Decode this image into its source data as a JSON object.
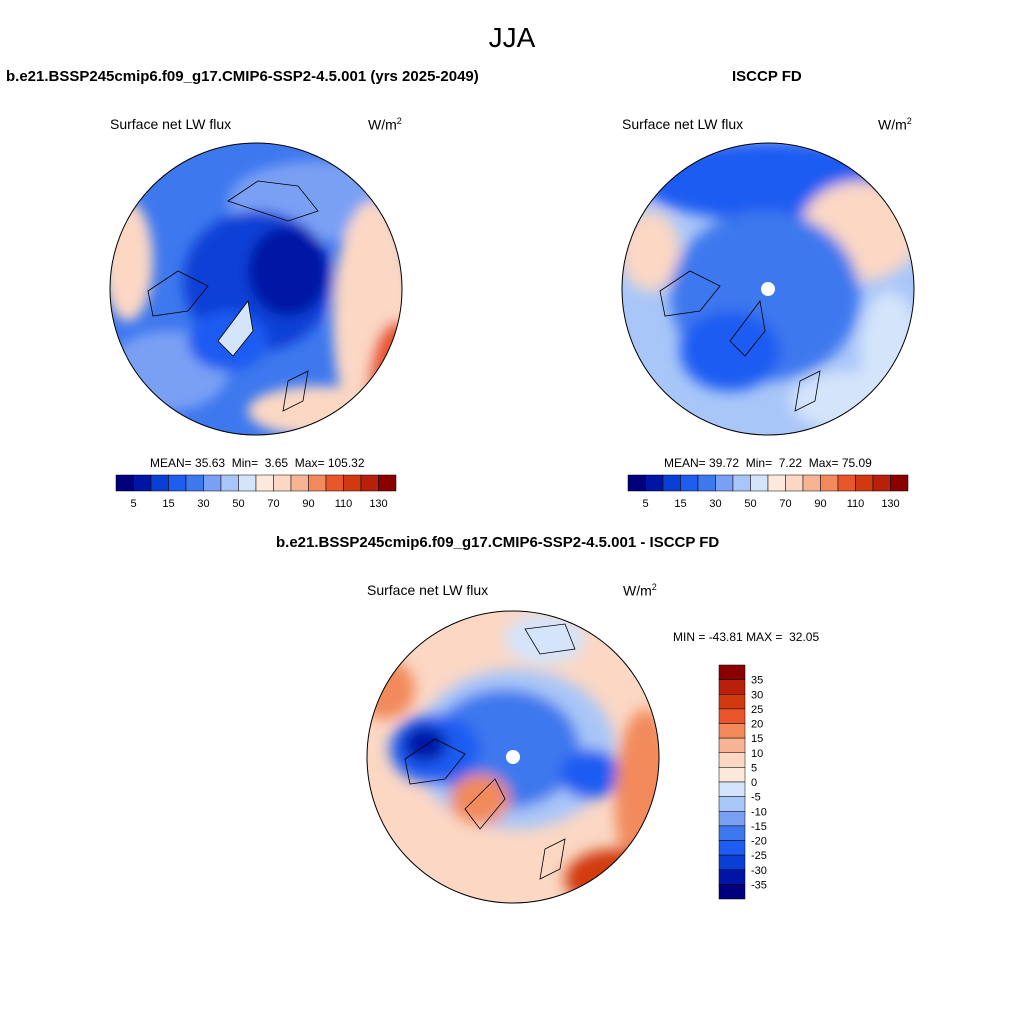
{
  "season": "JJA",
  "units": {
    "text": "W/m",
    "sup": "2"
  },
  "colors": {
    "ocean_blue_dark": "#0a3fd6",
    "land_blue": "#3e78ee",
    "light_blue": "#a9c6f8",
    "pale_orange": "#fbd7c4",
    "orange": "#f28a5c",
    "deep_red": "#b8200a",
    "coast": "#000000"
  },
  "panels": [
    {
      "title": "b.e21.BSSP245cmip6.f09_g17.CMIP6-SSP2-4.5.001 (yrs 2025-2049)",
      "variable": "Surface net LW flux",
      "stats": {
        "mean_label": "MEAN=",
        "mean": "35.63",
        "min_label": "Min=",
        "min": "3.65",
        "max_label": "Max=",
        "max": "105.32"
      }
    },
    {
      "title": "ISCCP FD",
      "variable": "Surface net LW flux",
      "stats": {
        "mean_label": "MEAN=",
        "mean": "39.72",
        "min_label": "Min=",
        "min": "7.22",
        "max_label": "Max=",
        "max": "75.09"
      }
    }
  ],
  "diff_panel": {
    "title": "b.e21.BSSP245cmip6.f09_g17.CMIP6-SSP2-4.5.001 - ISCCP FD",
    "variable": "Surface net LW flux",
    "stats": {
      "min_label": "MIN =",
      "min": "-43.81",
      "max_label": "MAX =",
      "max": "32.05"
    }
  },
  "colorbar_horizontal": {
    "colors": [
      "#00007f",
      "#0014a5",
      "#0a3fd6",
      "#1f5cf2",
      "#3e78ee",
      "#7aa0f4",
      "#a9c6f8",
      "#d4e4fb",
      "#fde8dc",
      "#fbd7c4",
      "#f7b494",
      "#f28a5c",
      "#e9562c",
      "#d13a0f",
      "#b8200a",
      "#8a0000"
    ],
    "labels": [
      "5",
      "15",
      "30",
      "50",
      "70",
      "90",
      "110",
      "130"
    ]
  },
  "colorbar_vertical": {
    "colors": [
      "#8a0000",
      "#b8200a",
      "#d13a0f",
      "#e9562c",
      "#f28a5c",
      "#f7b494",
      "#fbd7c4",
      "#fde8dc",
      "#d4e4fb",
      "#a9c6f8",
      "#7aa0f4",
      "#3e78ee",
      "#1f5cf2",
      "#0a3fd6",
      "#0014a5",
      "#00007f"
    ],
    "labels": [
      "35",
      "30",
      "25",
      "20",
      "15",
      "10",
      "5",
      "0",
      "-5",
      "-10",
      "-15",
      "-20",
      "-25",
      "-30",
      "-35"
    ]
  }
}
